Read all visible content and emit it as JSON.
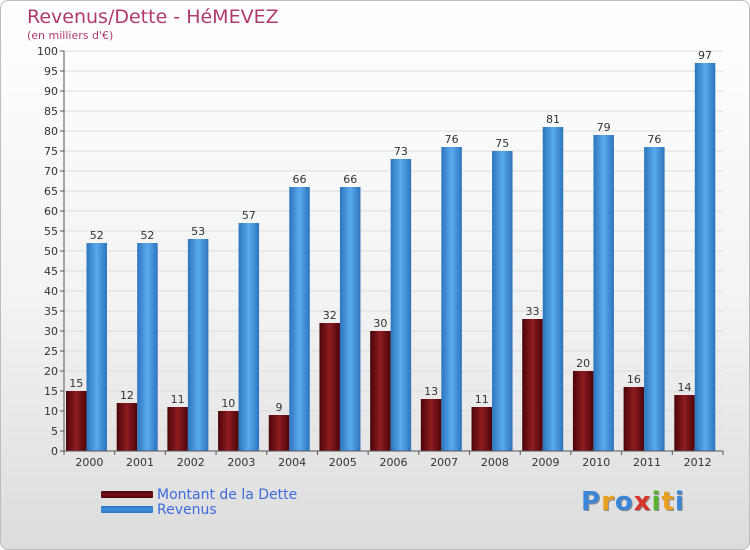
{
  "chart_data": {
    "type": "bar",
    "title": "Revenus/Dette - HéMEVEZ",
    "subtitle": "(en milliers d'€)",
    "xlabel": "",
    "ylabel": "",
    "ylim": [
      0,
      100
    ],
    "ytick_step": 5,
    "grid": true,
    "legend_position": "bottom-left",
    "categories": [
      "2000",
      "2001",
      "2002",
      "2003",
      "2004",
      "2005",
      "2006",
      "2007",
      "2008",
      "2009",
      "2010",
      "2011",
      "2012"
    ],
    "series": [
      {
        "name": "Montant de la Dette",
        "color": "#7a0f14",
        "values": [
          15,
          12,
          11,
          10,
          9,
          32,
          30,
          13,
          11,
          33,
          20,
          16,
          14
        ]
      },
      {
        "name": "Revenus",
        "color": "#3d8fda",
        "values": [
          52,
          52,
          53,
          57,
          66,
          66,
          73,
          76,
          75,
          81,
          79,
          76,
          97
        ]
      }
    ]
  },
  "logo": {
    "letters": [
      "P",
      "r",
      "o",
      "x",
      "i",
      "t",
      "i"
    ],
    "colors": [
      "#3c86d8",
      "#e8a020",
      "#3c86d8",
      "#d7342b",
      "#58b332",
      "#e8a020",
      "#3c86d8"
    ]
  }
}
